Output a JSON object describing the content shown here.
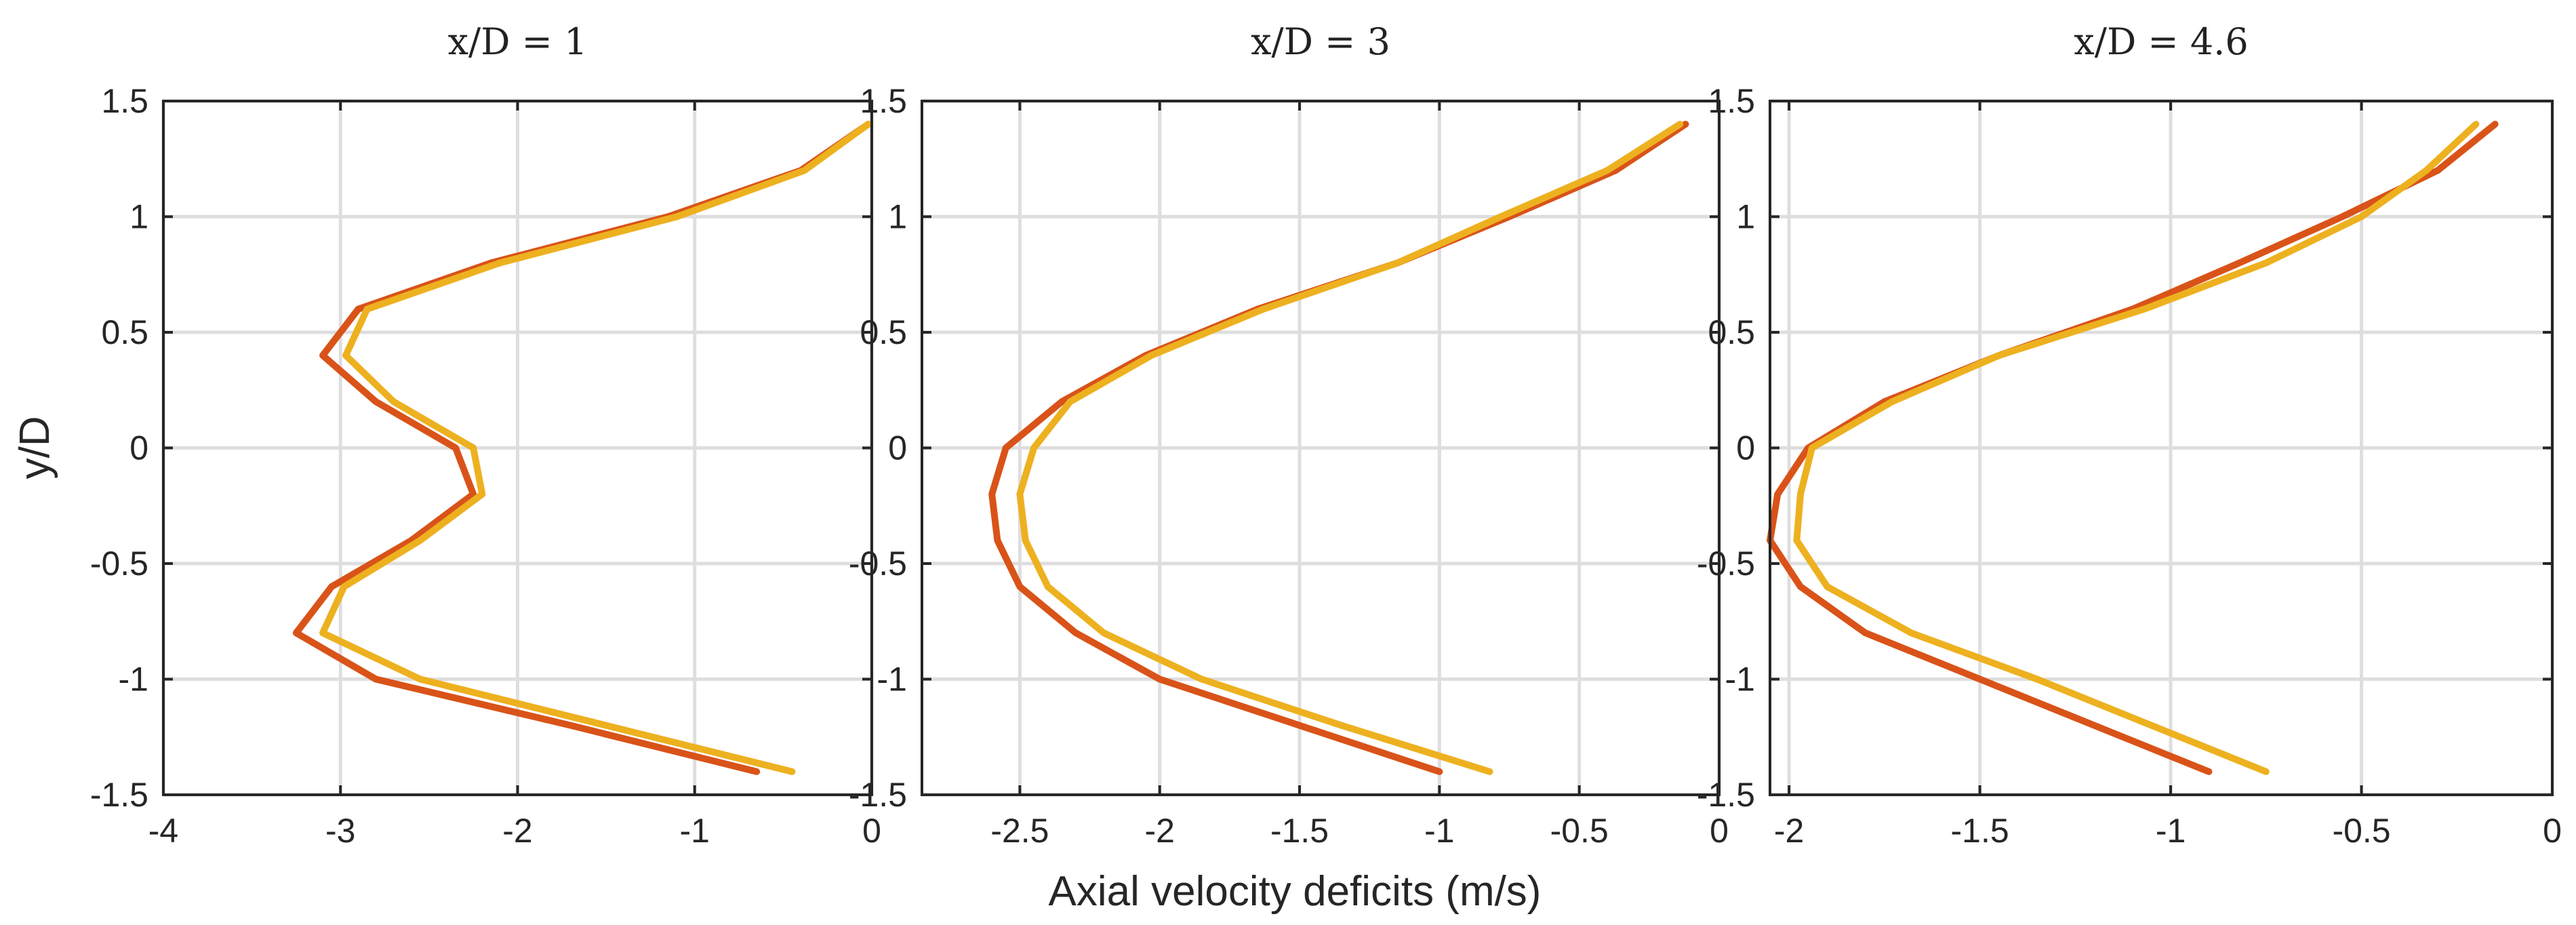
{
  "chart_data": {
    "type": "line",
    "ylabel": "y/D",
    "xlabel": "Axial velocity deficits (m/s)",
    "colors": {
      "series_a": "#d95319",
      "series_b": "#edb120"
    },
    "panels": [
      {
        "title": "x/D = 1",
        "xlim": [
          -4,
          0
        ],
        "ylim": [
          -1.5,
          1.5
        ],
        "xticks": [
          -4,
          -3,
          -2,
          -1,
          0
        ],
        "xtick_labels": [
          "-4",
          "-3",
          "-2",
          "-1",
          "0"
        ],
        "yticks": [
          -1.5,
          -1,
          -0.5,
          0,
          0.5,
          1,
          1.5
        ],
        "ytick_labels": [
          "-1.5",
          "-1",
          "-0.5",
          "0",
          "0.5",
          "1",
          "1.5"
        ],
        "series": [
          {
            "name": "series_a",
            "y": [
              -1.4,
              -1.2,
              -1.0,
              -0.8,
              -0.6,
              -0.4,
              -0.2,
              0.0,
              0.2,
              0.4,
              0.6,
              0.8,
              1.0,
              1.2,
              1.4
            ],
            "x": [
              -0.65,
              -1.7,
              -2.8,
              -3.25,
              -3.05,
              -2.6,
              -2.25,
              -2.35,
              -2.8,
              -3.1,
              -2.9,
              -2.15,
              -1.15,
              -0.4,
              -0.02
            ]
          },
          {
            "name": "series_b",
            "y": [
              -1.4,
              -1.2,
              -1.0,
              -0.8,
              -0.6,
              -0.4,
              -0.2,
              0.0,
              0.2,
              0.4,
              0.6,
              0.8,
              1.0,
              1.2,
              1.4
            ],
            "x": [
              -0.45,
              -1.5,
              -2.55,
              -3.1,
              -2.98,
              -2.55,
              -2.2,
              -2.25,
              -2.7,
              -2.97,
              -2.85,
              -2.1,
              -1.1,
              -0.38,
              -0.02
            ]
          }
        ]
      },
      {
        "title": "x/D = 3",
        "xlim": [
          -2.85,
          0
        ],
        "ylim": [
          -1.5,
          1.5
        ],
        "xticks": [
          -2.5,
          -2,
          -1.5,
          -1,
          -0.5,
          0
        ],
        "xtick_labels": [
          "-2.5",
          "-2",
          "-1.5",
          "-1",
          "-0.5",
          "0"
        ],
        "yticks": [
          -1.5,
          -1,
          -0.5,
          0,
          0.5,
          1,
          1.5
        ],
        "ytick_labels": [
          "-1.5",
          "-1",
          "-0.5",
          "0",
          "0.5",
          "1",
          "1.5"
        ],
        "series": [
          {
            "name": "series_a",
            "y": [
              -1.4,
              -1.2,
              -1.0,
              -0.8,
              -0.6,
              -0.4,
              -0.2,
              0.0,
              0.2,
              0.4,
              0.6,
              0.8,
              1.0,
              1.2,
              1.4
            ],
            "x": [
              -1.0,
              -1.5,
              -2.0,
              -2.3,
              -2.5,
              -2.58,
              -2.6,
              -2.55,
              -2.35,
              -2.05,
              -1.65,
              -1.15,
              -0.75,
              -0.37,
              -0.12
            ]
          },
          {
            "name": "series_b",
            "y": [
              -1.4,
              -1.2,
              -1.0,
              -0.8,
              -0.6,
              -0.4,
              -0.2,
              0.0,
              0.2,
              0.4,
              0.6,
              0.8,
              1.0,
              1.2,
              1.4
            ],
            "x": [
              -0.82,
              -1.35,
              -1.85,
              -2.2,
              -2.4,
              -2.48,
              -2.5,
              -2.45,
              -2.32,
              -2.03,
              -1.63,
              -1.15,
              -0.78,
              -0.4,
              -0.14
            ]
          }
        ]
      },
      {
        "title": "x/D = 4.6",
        "xlim": [
          -2.05,
          0
        ],
        "ylim": [
          -1.5,
          1.5
        ],
        "xticks": [
          -2,
          -1.5,
          -1,
          -0.5,
          0
        ],
        "xtick_labels": [
          "-2",
          "-1.5",
          "-1",
          "-0.5",
          "0"
        ],
        "yticks": [
          -1.5,
          -1,
          -0.5,
          0,
          0.5,
          1,
          1.5
        ],
        "ytick_labels": [
          "-1.5",
          "-1",
          "-0.5",
          "0",
          "0.5",
          "1",
          "1.5"
        ],
        "series": [
          {
            "name": "series_a",
            "y": [
              -1.4,
              -1.2,
              -1.0,
              -0.8,
              -0.6,
              -0.4,
              -0.2,
              0.0,
              0.2,
              0.4,
              0.6,
              0.8,
              1.0,
              1.2,
              1.4
            ],
            "x": [
              -0.9,
              -1.2,
              -1.5,
              -1.8,
              -1.97,
              -2.05,
              -2.03,
              -1.95,
              -1.75,
              -1.45,
              -1.1,
              -0.82,
              -0.55,
              -0.3,
              -0.15
            ]
          },
          {
            "name": "series_b",
            "y": [
              -1.4,
              -1.2,
              -1.0,
              -0.8,
              -0.6,
              -0.4,
              -0.2,
              0.0,
              0.2,
              0.4,
              0.6,
              0.8,
              1.0,
              1.2,
              1.4
            ],
            "x": [
              -0.75,
              -1.05,
              -1.35,
              -1.68,
              -1.9,
              -1.98,
              -1.97,
              -1.94,
              -1.73,
              -1.45,
              -1.07,
              -0.75,
              -0.5,
              -0.33,
              -0.2
            ]
          }
        ]
      }
    ]
  }
}
